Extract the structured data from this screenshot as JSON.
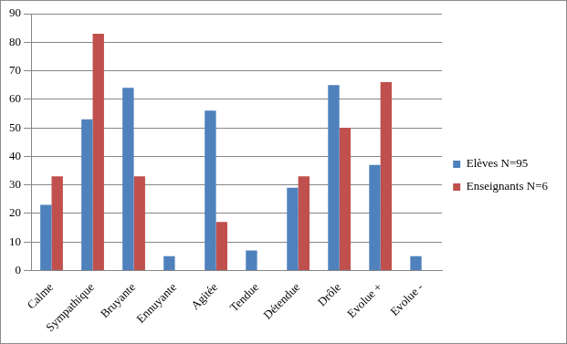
{
  "chart_data": {
    "type": "bar",
    "categories": [
      "Calme",
      "Sympathique",
      "Bruyante",
      "Ennuyante",
      "Agitée",
      "Tendue",
      "Détendue",
      "Drôle",
      "Evolue +",
      "Evolue -"
    ],
    "series": [
      {
        "name": "Elèves N=95",
        "color": "#4f81bd",
        "values": [
          23,
          53,
          64,
          5,
          56,
          7,
          29,
          65,
          37,
          5
        ]
      },
      {
        "name": "Enseignants N=6",
        "color": "#c0504d",
        "values": [
          33,
          83,
          33,
          0,
          17,
          0,
          33,
          50,
          66,
          0
        ]
      }
    ],
    "ylim": [
      0,
      90
    ],
    "yticks": [
      0,
      10,
      20,
      30,
      40,
      50,
      60,
      70,
      80,
      90
    ],
    "grid": true,
    "legend": "right"
  }
}
